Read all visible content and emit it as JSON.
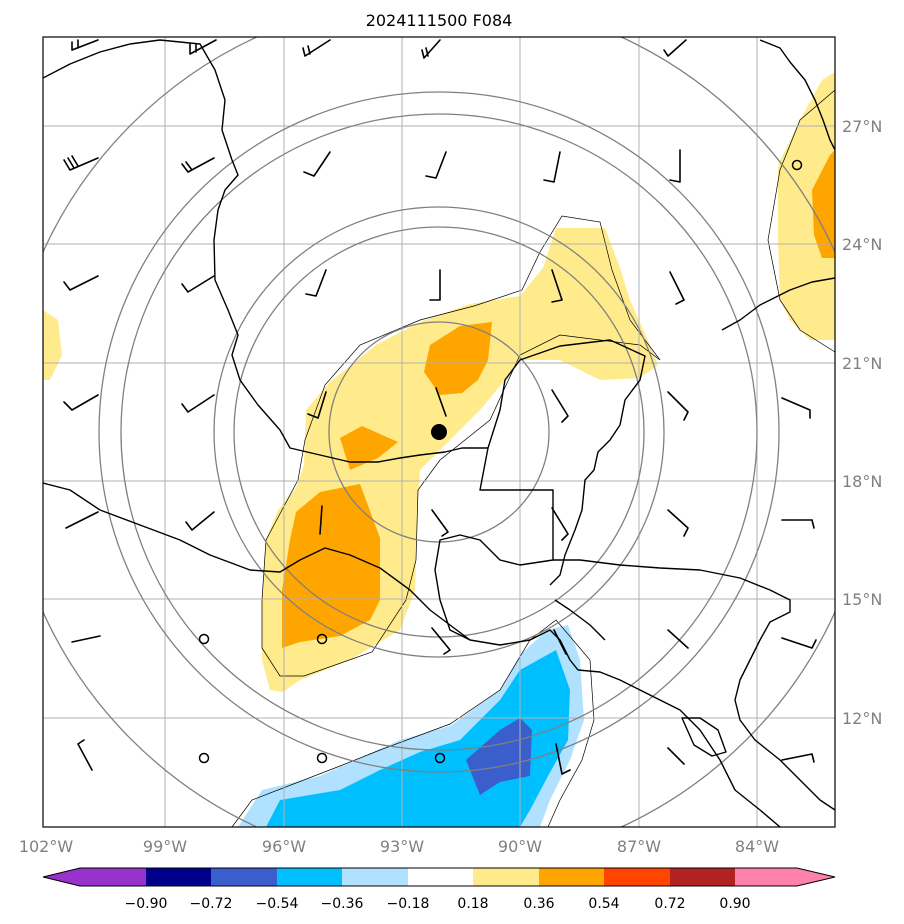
{
  "title": "2024111500 F084",
  "map": {
    "type": "filled contour map with wind barbs",
    "lon_range": [
      -102,
      -82
    ],
    "lat_range": [
      9,
      29
    ],
    "x_ticks": [
      "102°W",
      "99°W",
      "96°W",
      "93°W",
      "90°W",
      "87°W",
      "84°W"
    ],
    "y_ticks": [
      "27°N",
      "24°N",
      "21°N",
      "18°N",
      "15°N",
      "12°N"
    ],
    "center": {
      "lon": -92,
      "lat": 19.2
    },
    "range_rings": 6,
    "grid": true
  },
  "colorbar": {
    "levels": [
      "−0.90",
      "−0.72",
      "−0.54",
      "−0.36",
      "−0.18",
      "0.18",
      "0.36",
      "0.54",
      "0.72",
      "0.90"
    ],
    "colors": [
      "#9932cc",
      "#00008b",
      "#3a5fcd",
      "#00bfff",
      "#b0e2ff",
      "#ffffff",
      "#ffeb8c",
      "#ffa500",
      "#ff4500",
      "#b22222",
      "#ff82ab"
    ],
    "extend": "both"
  }
}
